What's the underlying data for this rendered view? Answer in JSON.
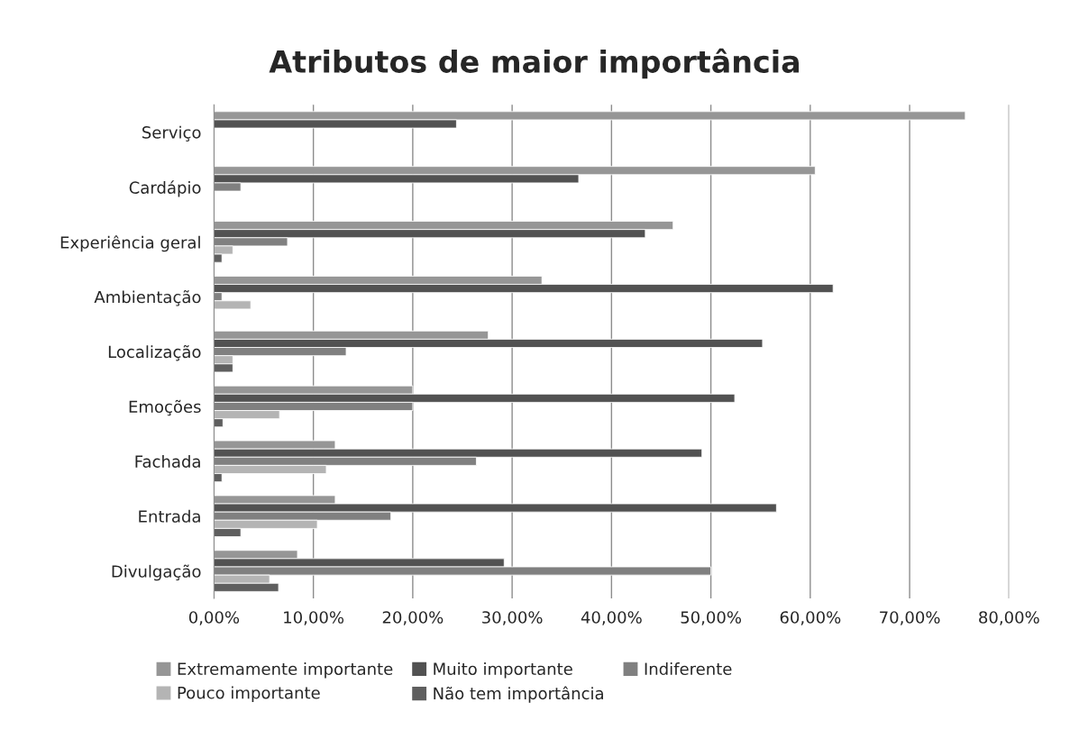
{
  "chart_data": {
    "type": "bar",
    "orientation": "horizontal",
    "title": "Atributos de maior importância",
    "categories": [
      "Serviço",
      "Cardápio",
      "Experiência geral",
      "Ambientação",
      "Localização",
      "Emoções",
      "Fachada",
      "Entrada",
      "Divulgação"
    ],
    "series": [
      {
        "name": "Extremamente importante",
        "color": "#969696",
        "values": [
          75.6,
          60.5,
          46.2,
          33.0,
          27.6,
          20.0,
          12.2,
          12.2,
          8.4
        ]
      },
      {
        "name": "Muito importante",
        "color": "#525252",
        "values": [
          24.4,
          36.7,
          43.4,
          62.3,
          55.2,
          52.4,
          49.1,
          56.6,
          29.2
        ]
      },
      {
        "name": "Indiferente",
        "color": "#808080",
        "values": [
          null,
          2.7,
          7.4,
          0.8,
          13.3,
          20.0,
          26.4,
          17.8,
          50.0
        ]
      },
      {
        "name": "Pouco importante",
        "color": "#b4b4b4",
        "values": [
          null,
          null,
          1.9,
          3.7,
          1.9,
          6.6,
          11.3,
          10.4,
          5.6
        ]
      },
      {
        "name": "Não tem importância",
        "color": "#5f5f5f",
        "values": [
          null,
          null,
          0.8,
          null,
          1.9,
          0.9,
          0.8,
          2.7,
          6.5
        ]
      }
    ],
    "xlim": [
      0,
      80
    ],
    "xticks": [
      {
        "value": 0,
        "label": "0,00%"
      },
      {
        "value": 10,
        "label": "10,00%"
      },
      {
        "value": 20,
        "label": "20,00%"
      },
      {
        "value": 30,
        "label": "30,00%"
      },
      {
        "value": 40,
        "label": "40,00%"
      },
      {
        "value": 50,
        "label": "50,00%"
      },
      {
        "value": 60,
        "label": "60,00%"
      },
      {
        "value": 70,
        "label": "70,00%"
      },
      {
        "value": 80,
        "label": "80,00%"
      }
    ],
    "grid": "x",
    "legend": "bottom"
  }
}
